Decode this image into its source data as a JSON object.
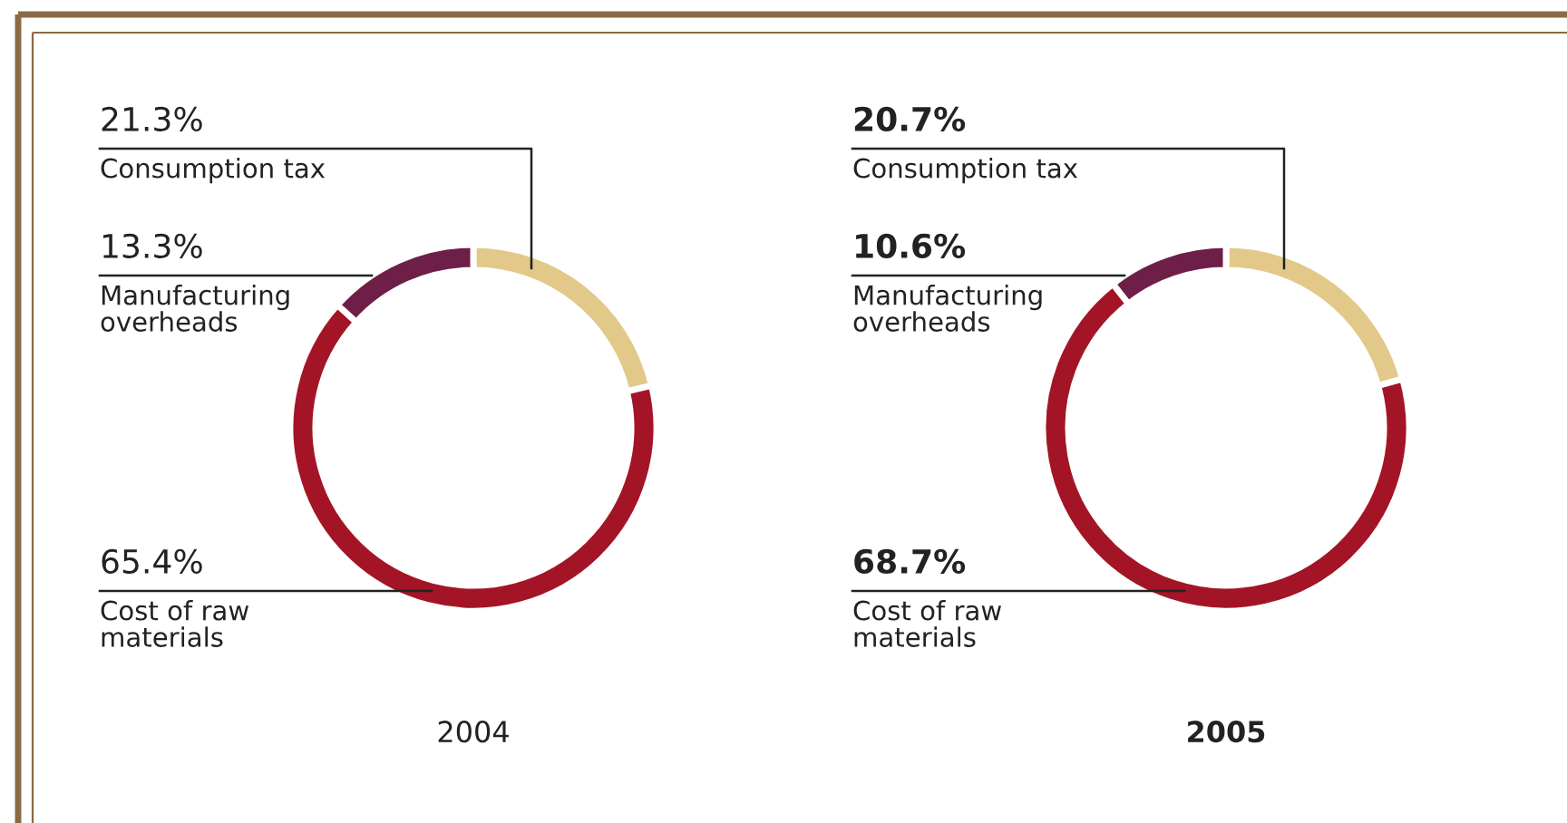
{
  "chart_data": [
    {
      "type": "donut",
      "title": "2004",
      "categories": [
        "Consumption tax",
        "Cost of raw materials",
        "Manufacturing overheads"
      ],
      "values": [
        21.3,
        65.4,
        13.3
      ],
      "colors": [
        "#e2c98a",
        "#a31526",
        "#6e1f47"
      ],
      "value_labels": [
        "21.3%",
        "65.4%",
        "13.3%"
      ],
      "legend": false
    },
    {
      "type": "donut",
      "title": "2005",
      "categories": [
        "Consumption tax",
        "Cost of raw materials",
        "Manufacturing overheads"
      ],
      "values": [
        20.7,
        68.7,
        10.6
      ],
      "colors": [
        "#e2c98a",
        "#a31526",
        "#6e1f47"
      ],
      "value_labels": [
        "20.7%",
        "68.7%",
        "10.6%"
      ],
      "legend": false
    }
  ]
}
